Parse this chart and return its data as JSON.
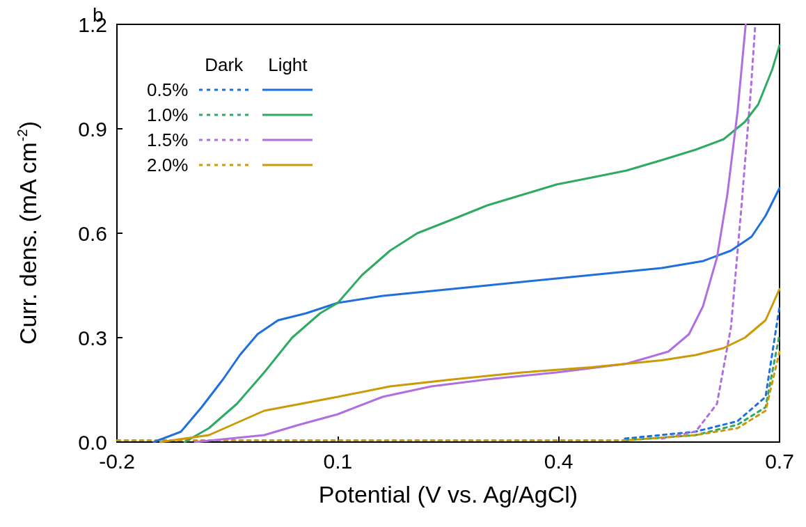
{
  "chart_data": {
    "type": "line",
    "title": "b",
    "xlabel": "Potential (V vs. Ag/AgCl)",
    "ylabel": "Curr. dens. (mA cm$^{-2}$)",
    "xlim": [
      -0.2,
      0.7
    ],
    "xticks": [
      -0.2,
      0.1,
      0.4,
      0.7
    ],
    "ylim": [
      0,
      1.2
    ],
    "yticks": [
      {
        "value": 0,
        "label": "0.0"
      },
      0.3,
      0.6,
      0.9,
      1.2
    ],
    "grid": false,
    "legend": "top left",
    "marker": "none",
    "annotations": [
      "Dark",
      "Light"
    ],
    "series": [
      {
        "name": "0.5%",
        "color": "#1f6fdc",
        "line_style": "dashed",
        "x": [
          0.49,
          0.586,
          0.643,
          0.681,
          0.7
        ],
        "values": [
          0.01,
          0.03,
          0.06,
          0.13,
          0.39
        ]
      },
      {
        "name": "1.0%",
        "color": "#2eaa63",
        "line_style": "dashed",
        "x": [
          0.49,
          0.586,
          0.643,
          0.681,
          0.7
        ],
        "values": [
          0.005,
          0.02,
          0.05,
          0.1,
          0.31
        ]
      },
      {
        "name": "1.5%",
        "color": "#b06fe0",
        "line_style": "dashed",
        "x": [
          0.54,
          0.586,
          0.615,
          0.634,
          0.648,
          0.661,
          0.667
        ],
        "values": [
          0.01,
          0.03,
          0.11,
          0.33,
          0.67,
          1.01,
          1.2
        ]
      },
      {
        "name": "2.0%",
        "color": "#cc9a06",
        "line_style": "dashed",
        "x": [
          -0.2,
          0.2,
          0.49,
          0.586,
          0.643,
          0.681,
          0.7
        ],
        "values": [
          0.005,
          0.005,
          0.005,
          0.02,
          0.04,
          0.09,
          0.26
        ]
      },
      {
        "color": "#1f6fdc",
        "line_style": "solid",
        "x": [
          -0.15,
          -0.113,
          -0.085,
          -0.056,
          -0.033,
          -0.009,
          0.019,
          0.057,
          0.1,
          0.161,
          0.256,
          0.35,
          0.445,
          0.54,
          0.596,
          0.634,
          0.662,
          0.681,
          0.7
        ],
        "values": [
          0,
          0.03,
          0.1,
          0.18,
          0.25,
          0.31,
          0.35,
          0.37,
          0.4,
          0.42,
          0.44,
          0.46,
          0.48,
          0.5,
          0.52,
          0.55,
          0.59,
          0.65,
          0.73
        ]
      },
      {
        "color": "#2eaa63",
        "line_style": "solid",
        "x": [
          -0.108,
          -0.075,
          -0.037,
          0,
          0.038,
          0.076,
          0.1,
          0.133,
          0.171,
          0.208,
          0.256,
          0.303,
          0.35,
          0.397,
          0.445,
          0.492,
          0.54,
          0.586,
          0.624,
          0.653,
          0.671,
          0.69,
          0.7
        ],
        "values": [
          0,
          0.04,
          0.11,
          0.2,
          0.3,
          0.37,
          0.4,
          0.48,
          0.55,
          0.6,
          0.64,
          0.68,
          0.71,
          0.74,
          0.76,
          0.78,
          0.81,
          0.84,
          0.87,
          0.92,
          0.97,
          1.07,
          1.14
        ]
      },
      {
        "color": "#b06fe0",
        "line_style": "solid",
        "x": [
          -0.094,
          0,
          0.048,
          0.1,
          0.161,
          0.227,
          0.303,
          0.397,
          0.492,
          0.549,
          0.577,
          0.596,
          0.615,
          0.629,
          0.643,
          0.654
        ],
        "values": [
          0,
          0.02,
          0.05,
          0.08,
          0.13,
          0.16,
          0.18,
          0.2,
          0.225,
          0.26,
          0.31,
          0.39,
          0.53,
          0.71,
          0.95,
          1.2
        ]
      },
      {
        "color": "#cc9a06",
        "line_style": "solid",
        "x": [
          -0.141,
          -0.075,
          0,
          0.1,
          0.171,
          0.256,
          0.35,
          0.445,
          0.54,
          0.586,
          0.624,
          0.653,
          0.681,
          0.7
        ],
        "values": [
          0,
          0.02,
          0.09,
          0.13,
          0.16,
          0.18,
          0.2,
          0.215,
          0.235,
          0.25,
          0.27,
          0.3,
          0.35,
          0.44
        ]
      }
    ]
  }
}
